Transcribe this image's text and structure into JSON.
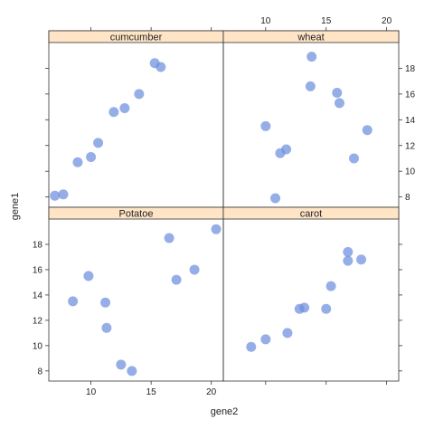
{
  "chart_data": {
    "type": "scatter",
    "layout": "trellis 2x2",
    "xlabel": "gene2",
    "ylabel": "gene1",
    "xlim": [
      6.5,
      21
    ],
    "ylim": [
      7.2,
      20
    ],
    "x_ticks": [
      10,
      15,
      20
    ],
    "y_ticks": [
      8,
      10,
      12,
      14,
      16,
      18
    ],
    "point_color": "#6d8fde",
    "strip_color": "#ffe5c6",
    "panels": [
      {
        "name": "cumcumber",
        "x": [
          7.0,
          7.7,
          8.9,
          10.0,
          10.6,
          11.9,
          12.8,
          14.0,
          15.3,
          15.8
        ],
        "y": [
          8.1,
          8.2,
          10.7,
          11.1,
          12.2,
          14.6,
          14.9,
          16.0,
          18.4,
          18.1
        ]
      },
      {
        "name": "wheat",
        "x": [
          10.0,
          10.8,
          11.2,
          11.7,
          13.7,
          13.8,
          15.9,
          16.1,
          17.3,
          18.4
        ],
        "y": [
          13.5,
          7.9,
          11.4,
          11.7,
          16.6,
          18.9,
          16.1,
          15.3,
          11.0,
          13.2
        ]
      },
      {
        "name": "Potatoe",
        "x": [
          8.5,
          9.8,
          11.2,
          11.3,
          12.5,
          13.4,
          16.5,
          17.1,
          18.6,
          20.4
        ],
        "y": [
          13.5,
          15.5,
          13.4,
          11.4,
          8.5,
          8.0,
          18.5,
          15.2,
          16.0,
          19.2
        ]
      },
      {
        "name": "carot",
        "x": [
          8.8,
          10.0,
          11.8,
          12.8,
          13.2,
          15.0,
          15.4,
          16.8,
          16.8,
          17.9
        ],
        "y": [
          9.9,
          10.5,
          11.0,
          12.9,
          13.0,
          12.9,
          14.7,
          17.4,
          16.7,
          16.8
        ]
      }
    ]
  }
}
